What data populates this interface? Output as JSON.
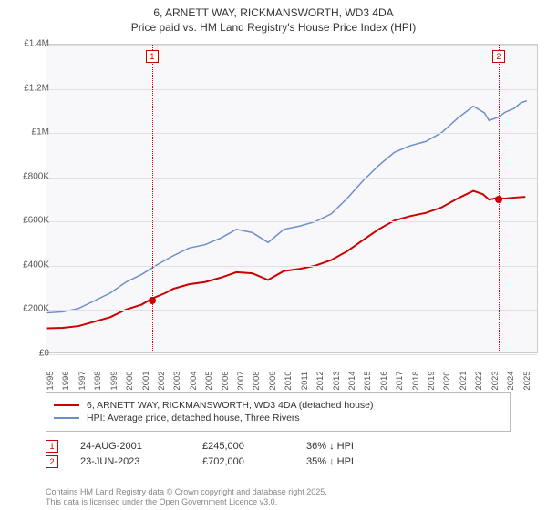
{
  "title": {
    "line1": "6, ARNETT WAY, RICKMANSWORTH, WD3 4DA",
    "line2": "Price paid vs. HM Land Registry's House Price Index (HPI)"
  },
  "chart": {
    "type": "line",
    "background_color": "#f8f8fb",
    "grid_color": "#e0e0e6",
    "border_color": "#cccccc",
    "x_axis": {
      "min_year": 1995,
      "max_year": 2026,
      "tick_step": 1,
      "label_fontsize": 9.5,
      "label_color": "#555555"
    },
    "y_axis": {
      "min": 0,
      "max": 1400000,
      "tick_step": 200000,
      "labels": [
        "£0",
        "£200K",
        "£400K",
        "£600K",
        "£800K",
        "£1M",
        "£1.2M",
        "£1.4M"
      ],
      "label_fontsize": 10,
      "label_color": "#555555"
    },
    "series": [
      {
        "name": "price_paid",
        "label": "6, ARNETT WAY, RICKMANSWORTH, WD3 4DA (detached house)",
        "color": "#cc0000",
        "line_width": 2,
        "points": [
          [
            1995.0,
            110000
          ],
          [
            1996.0,
            112000
          ],
          [
            1997.0,
            120000
          ],
          [
            1998.0,
            140000
          ],
          [
            1999.0,
            160000
          ],
          [
            2000.0,
            195000
          ],
          [
            2001.0,
            218000
          ],
          [
            2001.65,
            245000
          ],
          [
            2002.5,
            270000
          ],
          [
            2003.0,
            290000
          ],
          [
            2004.0,
            310000
          ],
          [
            2005.0,
            320000
          ],
          [
            2006.0,
            340000
          ],
          [
            2007.0,
            365000
          ],
          [
            2008.0,
            360000
          ],
          [
            2009.0,
            330000
          ],
          [
            2010.0,
            370000
          ],
          [
            2011.0,
            380000
          ],
          [
            2012.0,
            395000
          ],
          [
            2013.0,
            420000
          ],
          [
            2014.0,
            460000
          ],
          [
            2015.0,
            510000
          ],
          [
            2016.0,
            560000
          ],
          [
            2017.0,
            600000
          ],
          [
            2018.0,
            620000
          ],
          [
            2019.0,
            635000
          ],
          [
            2020.0,
            660000
          ],
          [
            2021.0,
            700000
          ],
          [
            2022.0,
            735000
          ],
          [
            2022.6,
            720000
          ],
          [
            2023.0,
            695000
          ],
          [
            2023.47,
            702000
          ],
          [
            2024.0,
            700000
          ],
          [
            2024.7,
            705000
          ],
          [
            2025.3,
            708000
          ]
        ]
      },
      {
        "name": "hpi",
        "label": "HPI: Average price, detached house, Three Rivers",
        "color": "#6b8fc7",
        "line_width": 1.5,
        "points": [
          [
            1995.0,
            180000
          ],
          [
            1996.0,
            185000
          ],
          [
            1997.0,
            200000
          ],
          [
            1998.0,
            235000
          ],
          [
            1999.0,
            270000
          ],
          [
            2000.0,
            320000
          ],
          [
            2001.0,
            355000
          ],
          [
            2002.0,
            400000
          ],
          [
            2003.0,
            440000
          ],
          [
            2004.0,
            475000
          ],
          [
            2005.0,
            490000
          ],
          [
            2006.0,
            520000
          ],
          [
            2007.0,
            560000
          ],
          [
            2008.0,
            545000
          ],
          [
            2009.0,
            500000
          ],
          [
            2010.0,
            560000
          ],
          [
            2011.0,
            575000
          ],
          [
            2012.0,
            595000
          ],
          [
            2013.0,
            630000
          ],
          [
            2014.0,
            700000
          ],
          [
            2015.0,
            780000
          ],
          [
            2016.0,
            850000
          ],
          [
            2017.0,
            910000
          ],
          [
            2018.0,
            940000
          ],
          [
            2019.0,
            960000
          ],
          [
            2020.0,
            1000000
          ],
          [
            2021.0,
            1065000
          ],
          [
            2022.0,
            1120000
          ],
          [
            2022.7,
            1090000
          ],
          [
            2023.0,
            1055000
          ],
          [
            2023.6,
            1070000
          ],
          [
            2024.0,
            1092000
          ],
          [
            2024.6,
            1110000
          ],
          [
            2025.0,
            1135000
          ],
          [
            2025.4,
            1145000
          ]
        ]
      }
    ],
    "markers": [
      {
        "id": "1",
        "year": 2001.65,
        "value": 245000
      },
      {
        "id": "2",
        "year": 2023.47,
        "value": 702000
      }
    ]
  },
  "legend": {
    "border_color": "#bbbbbb",
    "fontsize": 10.5
  },
  "sales": [
    {
      "id": "1",
      "date": "24-AUG-2001",
      "price": "£245,000",
      "delta": "36% ↓ HPI"
    },
    {
      "id": "2",
      "date": "23-JUN-2023",
      "price": "£702,000",
      "delta": "35% ↓ HPI"
    }
  ],
  "footer": {
    "line1": "Contains HM Land Registry data © Crown copyright and database right 2025.",
    "line2": "This data is licensed under the Open Government Licence v3.0."
  }
}
